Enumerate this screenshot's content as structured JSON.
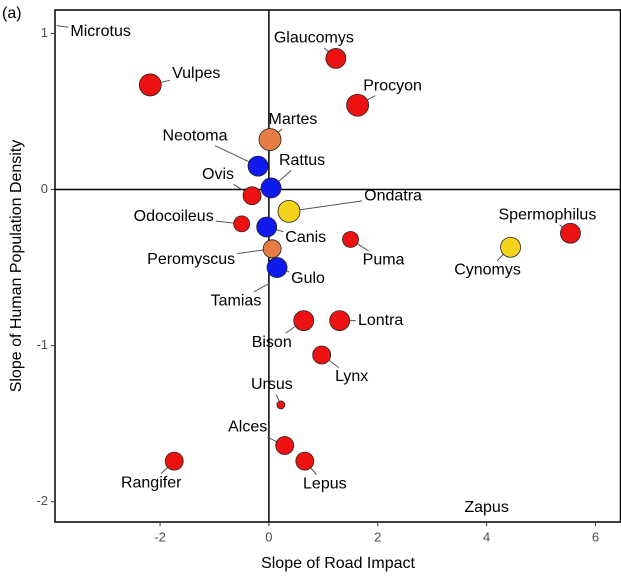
{
  "chart_data": {
    "type": "scatter",
    "panel_label": "(a)",
    "xlabel": "Slope of Road Impact",
    "ylabel": "Slope of Human Population Density",
    "xlim": [
      -3.93,
      6.46
    ],
    "ylim": [
      -2.13,
      1.15
    ],
    "xticks": [
      -2,
      0,
      2,
      4,
      6
    ],
    "yticks": [
      -2,
      -1,
      0,
      1
    ],
    "hline": 0,
    "vline": 0,
    "points": [
      {
        "label": "Microtus",
        "x": -3.9,
        "y": 1.05,
        "size": 0,
        "color": "#ee1111"
      },
      {
        "label": "Vulpes",
        "x": -2.18,
        "y": 0.67,
        "size": 11,
        "color": "#ee1111"
      },
      {
        "label": "Glaucomys",
        "x": 1.23,
        "y": 0.84,
        "size": 10,
        "color": "#ee1111"
      },
      {
        "label": "Procyon",
        "x": 1.63,
        "y": 0.54,
        "size": 11,
        "color": "#ee1111"
      },
      {
        "label": "Martes",
        "x": 0.02,
        "y": 0.32,
        "size": 11,
        "color": "#e87c45"
      },
      {
        "label": "Neotoma",
        "x": -0.2,
        "y": 0.15,
        "size": 10,
        "color": "#0f1aef"
      },
      {
        "label": "Rattus",
        "x": 0.04,
        "y": 0.01,
        "size": 10,
        "color": "#0f1aef"
      },
      {
        "label": "Ovis",
        "x": -0.31,
        "y": -0.04,
        "size": 9,
        "color": "#ee1111"
      },
      {
        "label": "Ondatra",
        "x": 0.37,
        "y": -0.14,
        "size": 11,
        "color": "#f7d21a"
      },
      {
        "label": "Odocoileus",
        "x": -0.5,
        "y": -0.22,
        "size": 8,
        "color": "#ee1111"
      },
      {
        "label": "Canis",
        "x": -0.04,
        "y": -0.24,
        "size": 10,
        "color": "#0f1aef"
      },
      {
        "label": "Puma",
        "x": 1.5,
        "y": -0.32,
        "size": 8,
        "color": "#ee1111"
      },
      {
        "label": "Peromyscus",
        "x": 0.06,
        "y": -0.38,
        "size": 9,
        "color": "#e87c45"
      },
      {
        "label": "Gulo",
        "x": 0.15,
        "y": -0.5,
        "size": 10,
        "color": "#0f1aef"
      },
      {
        "label": "Tamias",
        "x": 0.02,
        "y": -0.6,
        "size": 0,
        "color": "#ee1111"
      },
      {
        "label": "Spermophilus",
        "x": 5.54,
        "y": -0.28,
        "size": 10,
        "color": "#ee1111"
      },
      {
        "label": "Cynomys",
        "x": 4.44,
        "y": -0.37,
        "size": 10,
        "color": "#f7d21a"
      },
      {
        "label": "Bison",
        "x": 0.64,
        "y": -0.84,
        "size": 10,
        "color": "#ee1111"
      },
      {
        "label": "Lontra",
        "x": 1.3,
        "y": -0.84,
        "size": 10,
        "color": "#ee1111"
      },
      {
        "label": "Lynx",
        "x": 0.97,
        "y": -1.06,
        "size": 9,
        "color": "#ee1111"
      },
      {
        "label": "Ursus",
        "x": 0.22,
        "y": -1.38,
        "size": 4,
        "color": "#ee1111"
      },
      {
        "label": "Alces",
        "x": 0.29,
        "y": -1.64,
        "size": 9,
        "color": "#ee1111"
      },
      {
        "label": "Lepus",
        "x": 0.66,
        "y": -1.74,
        "size": 9,
        "color": "#ee1111"
      },
      {
        "label": "Rangifer",
        "x": -1.74,
        "y": -1.74,
        "size": 9,
        "color": "#ee1111"
      },
      {
        "label": "Zapus",
        "x": 4.0,
        "y": -2.04,
        "size": 0,
        "color": "#ee1111"
      }
    ]
  }
}
